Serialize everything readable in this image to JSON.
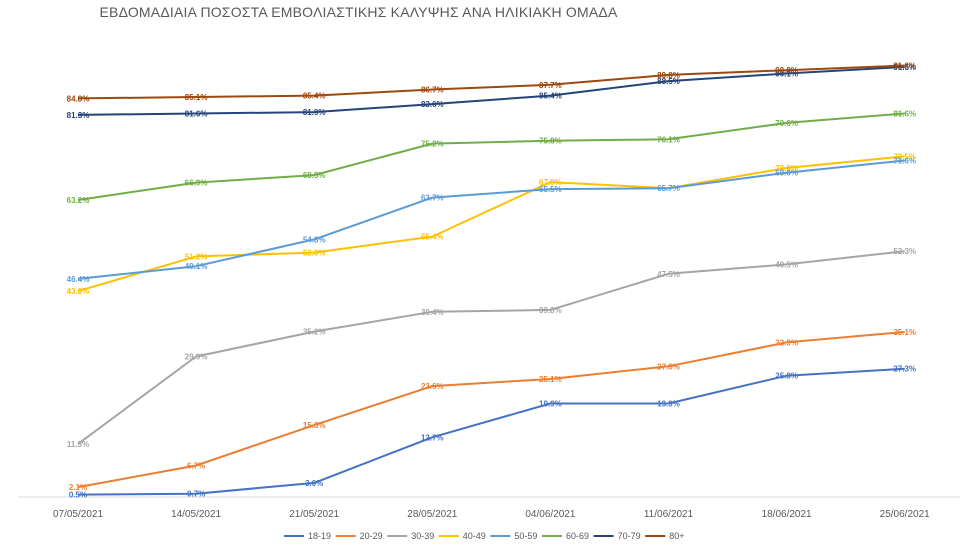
{
  "chart_data": {
    "type": "line",
    "title": "ΕΒΔΟΜΑΔΙΑΙΑ ΠΟΣΟΣΤΑ ΕΜΒΟΛΙΑΣΤΙΚΗΣ ΚΑΛΥΨΗΣ ΑΝΑ ΗΛΙΚΙΑΚΗ ΟΜΑΔΑ",
    "xlabel": "",
    "ylabel": "",
    "categories": [
      "07/05/2021",
      "14/05/2021",
      "21/05/2021",
      "28/05/2021",
      "04/06/2021",
      "11/06/2021",
      "18/06/2021",
      "25/06/2021"
    ],
    "ylim": [
      0,
      100
    ],
    "grid": false,
    "legend_position": "bottom",
    "series": [
      {
        "name": "18-19",
        "color": "#4472C4",
        "values": [
          0.5,
          0.7,
          3.0,
          12.7,
          19.9,
          19.9,
          25.8,
          27.3
        ],
        "labels": [
          "0.5%",
          "0.7%",
          "3.0%",
          "12.7%",
          "19.9%",
          "19.9%",
          "25.8%",
          "27.3%"
        ]
      },
      {
        "name": "20-29",
        "color": "#ED7D31",
        "values": [
          2.1,
          6.7,
          15.3,
          23.6,
          25.1,
          27.8,
          32.9,
          35.1
        ],
        "labels": [
          "2.1%",
          "6.7%",
          "15.3%",
          "23.6%",
          "25.1%",
          "27.8%",
          "32.9%",
          "35.1%"
        ]
      },
      {
        "name": "30-39",
        "color": "#A5A5A5",
        "values": [
          11.3,
          29.9,
          35.2,
          39.4,
          39.8,
          47.5,
          49.5,
          52.3
        ],
        "labels": [
          "11.3%",
          "29.9%",
          "35.2%",
          "39.4%",
          "39.8%",
          "47.5%",
          "49.5%",
          "52.3%"
        ]
      },
      {
        "name": "40-49",
        "color": "#FFC000",
        "values": [
          43.8,
          51.2,
          52.0,
          55.4,
          67.0,
          65.7,
          70.0,
          72.5
        ],
        "labels": [
          "43.8%",
          "51.2%",
          "52.0%",
          "55.4%",
          "67.0%",
          "",
          "70.0%",
          "72.5%"
        ]
      },
      {
        "name": "50-59",
        "color": "#5B9BD5",
        "values": [
          46.4,
          49.1,
          54.8,
          63.7,
          65.5,
          65.7,
          69.0,
          71.6
        ],
        "labels": [
          "46.4%",
          "49.1%",
          "54.8%",
          "63.7%",
          "65.5%",
          "65.7%",
          "69.0%",
          "71.6%"
        ]
      },
      {
        "name": "60-69",
        "color": "#70AD47",
        "values": [
          63.2,
          66.9,
          68.5,
          75.2,
          75.8,
          76.1,
          79.6,
          81.6
        ],
        "labels": [
          "63.2%",
          "66.9%",
          "68.5%",
          "75.2%",
          "75.8%",
          "76.1%",
          "79.6%",
          "81.6%"
        ]
      },
      {
        "name": "70-79",
        "color": "#264478",
        "values": [
          81.3,
          81.6,
          81.9,
          83.6,
          85.4,
          88.5,
          90.1,
          91.5
        ],
        "labels": [
          "81.3%",
          "81.6%",
          "81.9%",
          "83.6%",
          "85.4%",
          "88.5%",
          "90.1%",
          "91.5%"
        ]
      },
      {
        "name": "80+",
        "color": "#9E480E",
        "values": [
          84.8,
          85.1,
          85.4,
          86.7,
          87.7,
          89.8,
          90.8,
          91.8
        ],
        "labels": [
          "84.8%",
          "85.1%",
          "85.4%",
          "86.7%",
          "87.7%",
          "89.8%",
          "90.8%",
          "91.8%"
        ]
      }
    ]
  }
}
